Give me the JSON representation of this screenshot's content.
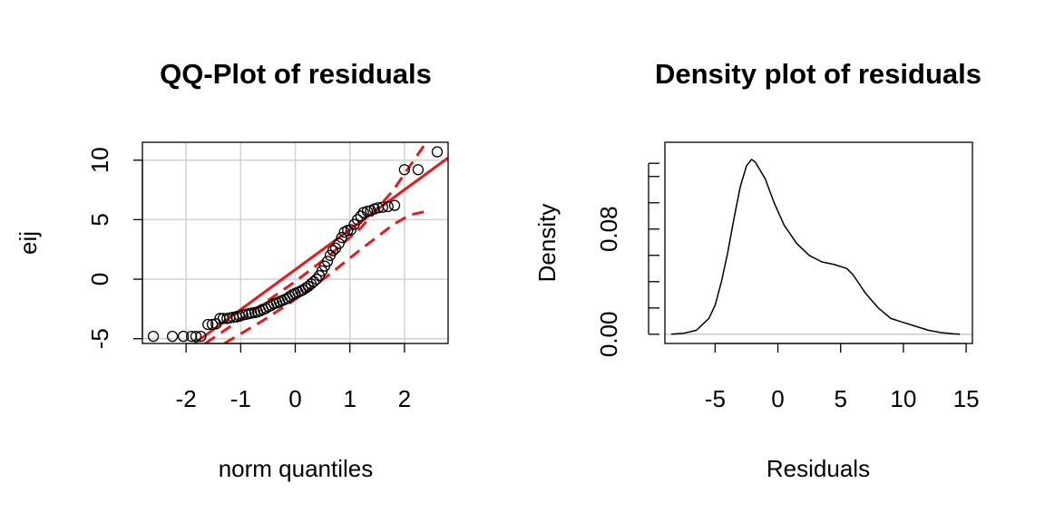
{
  "chart_data": [
    {
      "type": "scatter",
      "title": "QQ-Plot of residuals",
      "xlabel": "norm quantiles",
      "ylabel": "eij",
      "xlim": [
        -2.8,
        2.8
      ],
      "ylim": [
        -5.4,
        11.5
      ],
      "x_ticks": [
        -2,
        -1,
        0,
        1,
        2
      ],
      "y_ticks": [
        -5,
        0,
        5,
        10
      ],
      "grid": true,
      "series": [
        {
          "kind": "points",
          "points": [
            [
              -2.6,
              -4.8
            ],
            [
              -2.25,
              -4.8
            ],
            [
              -2.05,
              -4.8
            ],
            [
              -1.9,
              -4.8
            ],
            [
              -1.82,
              -4.8
            ],
            [
              -1.73,
              -4.8
            ],
            [
              -1.6,
              -3.8
            ],
            [
              -1.52,
              -3.8
            ],
            [
              -1.45,
              -3.75
            ],
            [
              -1.38,
              -3.3
            ],
            [
              -1.32,
              -3.3
            ],
            [
              -1.25,
              -3.3
            ],
            [
              -1.2,
              -3.25
            ],
            [
              -1.14,
              -3.2
            ],
            [
              -1.08,
              -3.15
            ],
            [
              -1.02,
              -3.1
            ],
            [
              -0.96,
              -3.0
            ],
            [
              -0.9,
              -2.95
            ],
            [
              -0.85,
              -2.9
            ],
            [
              -0.8,
              -2.85
            ],
            [
              -0.74,
              -2.8
            ],
            [
              -0.69,
              -2.75
            ],
            [
              -0.64,
              -2.65
            ],
            [
              -0.59,
              -2.55
            ],
            [
              -0.54,
              -2.45
            ],
            [
              -0.49,
              -2.3
            ],
            [
              -0.44,
              -2.2
            ],
            [
              -0.39,
              -2.05
            ],
            [
              -0.34,
              -2.0
            ],
            [
              -0.29,
              -1.9
            ],
            [
              -0.24,
              -1.8
            ],
            [
              -0.19,
              -1.7
            ],
            [
              -0.14,
              -1.6
            ],
            [
              -0.1,
              -1.45
            ],
            [
              -0.05,
              -1.3
            ],
            [
              0.0,
              -1.2
            ],
            [
              0.05,
              -1.1
            ],
            [
              0.1,
              -1.0
            ],
            [
              0.14,
              -0.9
            ],
            [
              0.19,
              -0.75
            ],
            [
              0.24,
              -0.6
            ],
            [
              0.29,
              -0.4
            ],
            [
              0.34,
              -0.2
            ],
            [
              0.39,
              0.0
            ],
            [
              0.44,
              0.3
            ],
            [
              0.49,
              0.7
            ],
            [
              0.54,
              1.1
            ],
            [
              0.59,
              1.5
            ],
            [
              0.64,
              2.0
            ],
            [
              0.69,
              2.4
            ],
            [
              0.74,
              2.6
            ],
            [
              0.8,
              3.0
            ],
            [
              0.85,
              3.5
            ],
            [
              0.9,
              3.95
            ],
            [
              0.96,
              4.1
            ],
            [
              1.02,
              4.15
            ],
            [
              1.08,
              4.6
            ],
            [
              1.14,
              5.0
            ],
            [
              1.2,
              5.3
            ],
            [
              1.25,
              5.6
            ],
            [
              1.32,
              5.7
            ],
            [
              1.38,
              5.75
            ],
            [
              1.45,
              5.9
            ],
            [
              1.52,
              6.0
            ],
            [
              1.6,
              6.05
            ],
            [
              1.7,
              6.1
            ],
            [
              1.82,
              6.2
            ],
            [
              2.0,
              9.2
            ],
            [
              2.25,
              9.2
            ],
            [
              2.6,
              10.7
            ]
          ]
        },
        {
          "kind": "reference-line",
          "color": "#e8191c",
          "points": [
            [
              -1.85,
              -5.4
            ],
            [
              2.8,
              10.2
            ]
          ]
        },
        {
          "kind": "confidence-envelope-upper",
          "color": "#e8191c",
          "points": [
            [
              -1.65,
              -5.4
            ],
            [
              -1.2,
              -4.0
            ],
            [
              -0.6,
              -2.1
            ],
            [
              0.0,
              -0.2
            ],
            [
              0.6,
              1.9
            ],
            [
              1.2,
              4.3
            ],
            [
              1.8,
              7.5
            ],
            [
              2.4,
              11.5
            ]
          ]
        },
        {
          "kind": "confidence-envelope-lower",
          "color": "#e8191c",
          "points": [
            [
              -1.3,
              -5.4
            ],
            [
              -0.6,
              -3.5
            ],
            [
              0.0,
              -1.7
            ],
            [
              0.6,
              0.3
            ],
            [
              1.2,
              2.5
            ],
            [
              1.8,
              4.6
            ],
            [
              2.1,
              5.4
            ],
            [
              2.4,
              5.7
            ]
          ]
        }
      ]
    },
    {
      "type": "line",
      "title": "Density plot of residuals",
      "xlabel": "Residuals",
      "ylabel": "Density",
      "xlim": [
        -9,
        15.5
      ],
      "ylim": [
        -0.007,
        0.146
      ],
      "x_ticks": [
        -5,
        0,
        5,
        10,
        15
      ],
      "y_ticks": [
        0.0,
        0.04,
        0.08,
        0.12
      ],
      "y_tick_labels": [
        "0.00",
        "0.08"
      ],
      "baseline": 0,
      "series": [
        {
          "points": [
            [
              -8.5,
              0.0
            ],
            [
              -7.5,
              0.0008
            ],
            [
              -6.5,
              0.003
            ],
            [
              -5.5,
              0.012
            ],
            [
              -5.0,
              0.022
            ],
            [
              -4.5,
              0.04
            ],
            [
              -4.0,
              0.062
            ],
            [
              -3.5,
              0.088
            ],
            [
              -3.0,
              0.112
            ],
            [
              -2.5,
              0.128
            ],
            [
              -2.1,
              0.133
            ],
            [
              -1.8,
              0.131
            ],
            [
              -1.0,
              0.118
            ],
            [
              -0.3,
              0.1
            ],
            [
              0.5,
              0.083
            ],
            [
              1.5,
              0.069
            ],
            [
              2.5,
              0.06
            ],
            [
              3.5,
              0.055
            ],
            [
              4.5,
              0.053
            ],
            [
              5.5,
              0.05
            ],
            [
              6.0,
              0.045
            ],
            [
              7.0,
              0.031
            ],
            [
              8.0,
              0.02
            ],
            [
              9.0,
              0.012
            ],
            [
              10.0,
              0.009
            ],
            [
              11.0,
              0.006
            ],
            [
              12.0,
              0.003
            ],
            [
              13.0,
              0.0013
            ],
            [
              14.0,
              0.0003
            ],
            [
              14.5,
              0.0
            ]
          ]
        }
      ]
    }
  ]
}
